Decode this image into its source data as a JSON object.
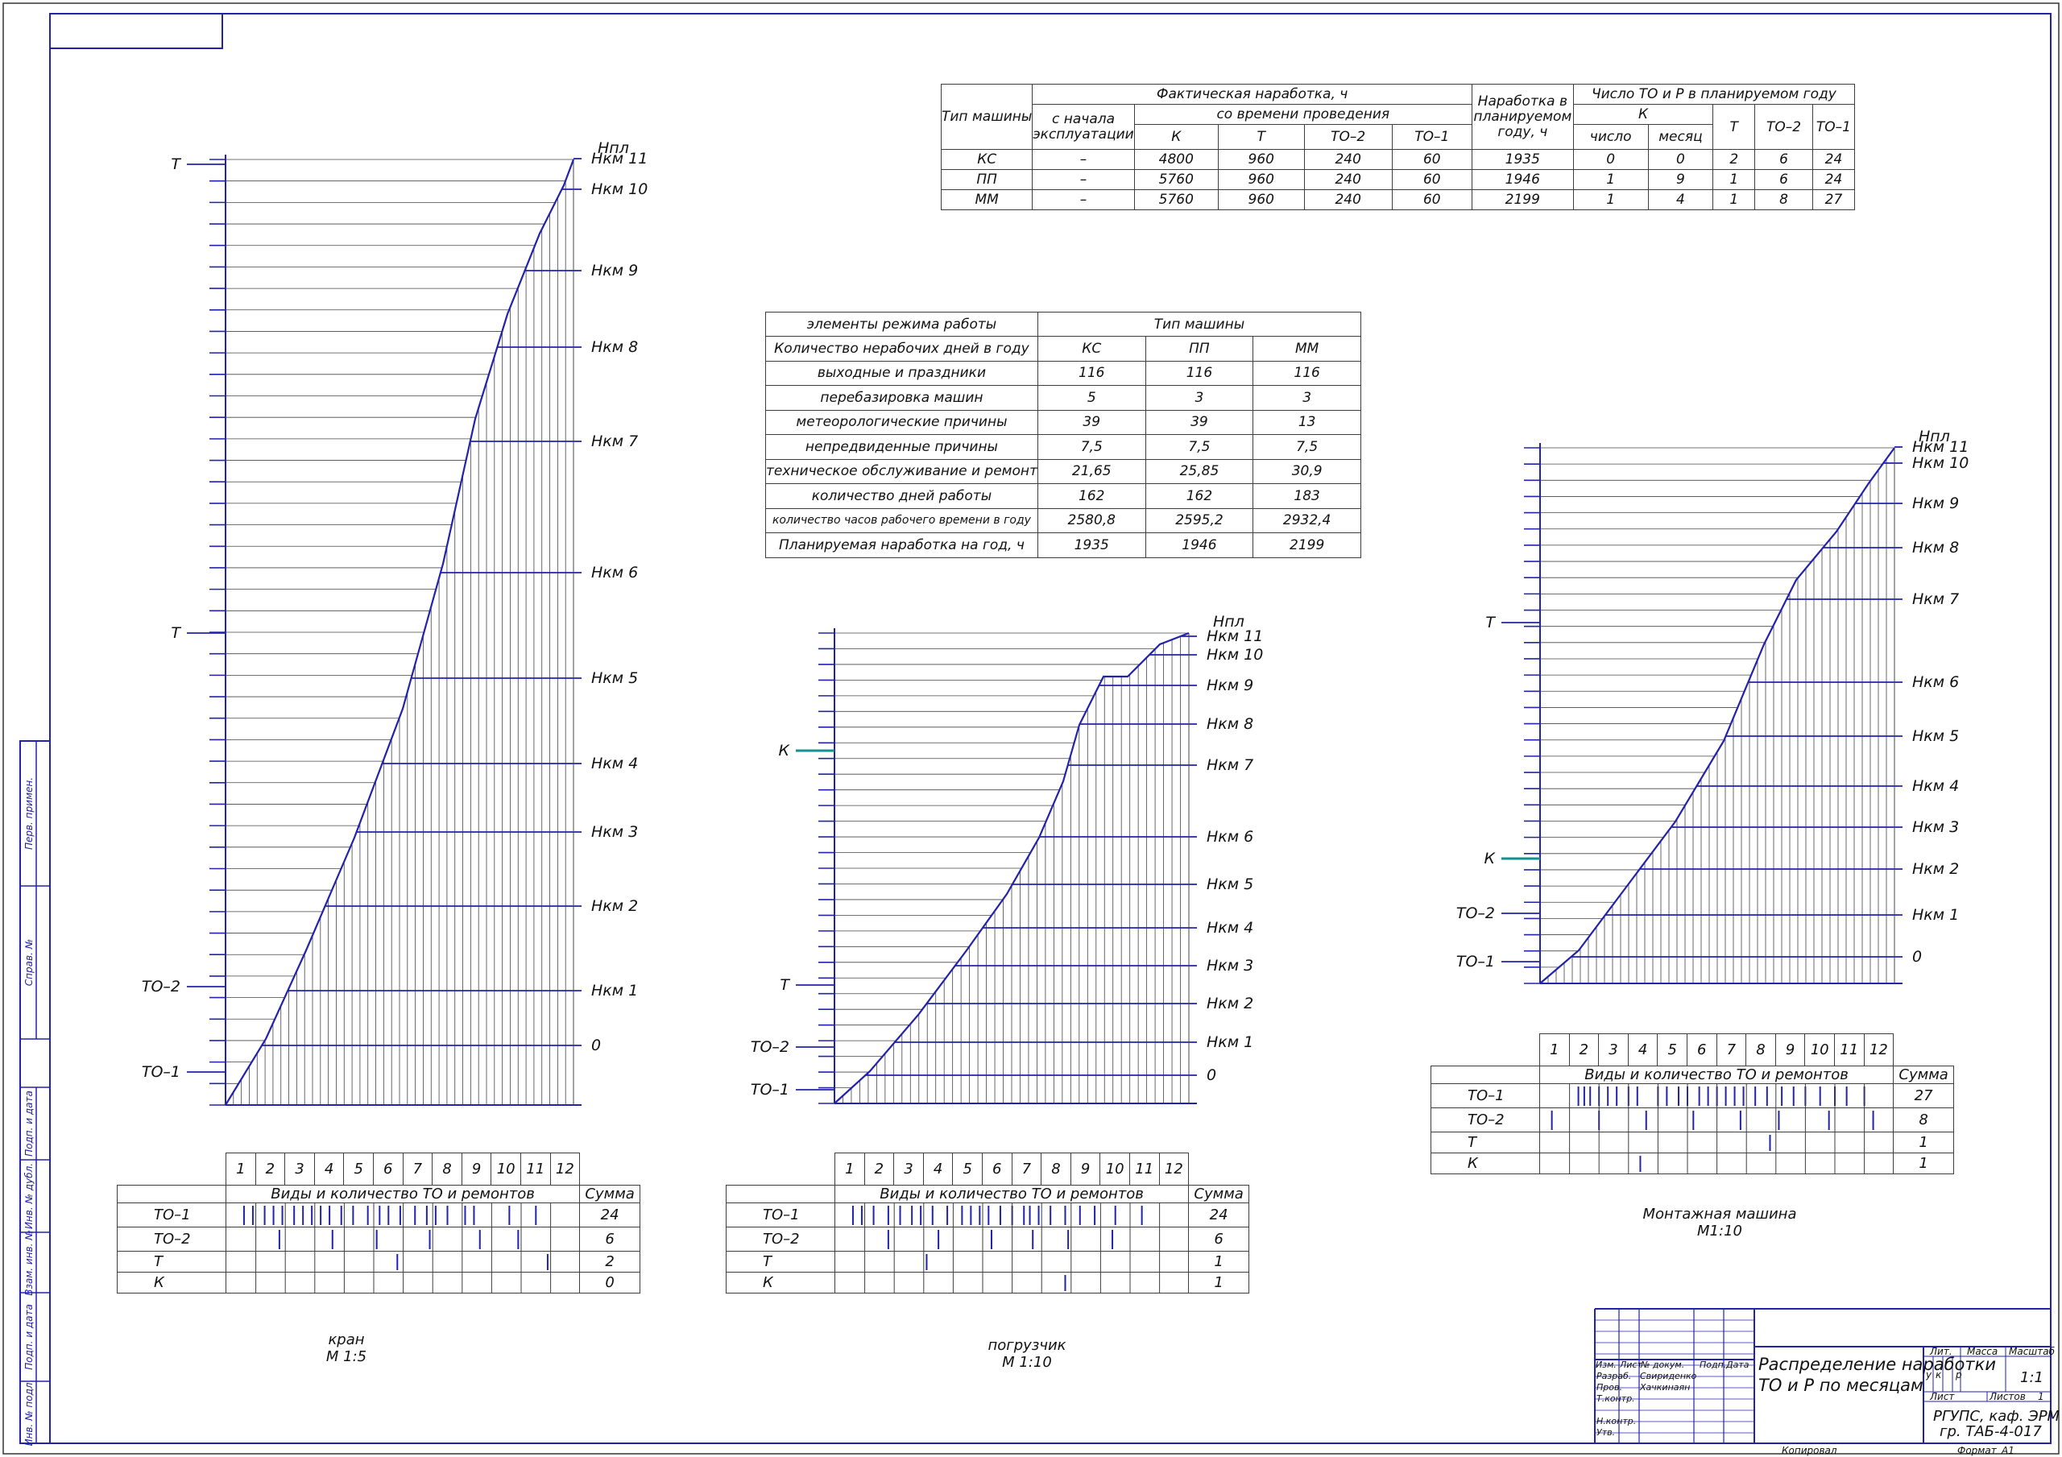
{
  "margin_labels": [
    "Перв. примен.",
    "Справ. №",
    "Подп. и дата",
    "Инв. № дубл.",
    "Взам. инв. №",
    "Подп. и дата",
    "Инв. № подл."
  ],
  "top_table": {
    "col_type": "Тип машины",
    "actual_hours": "Фактическая наработка, ч",
    "since_start": "с начала эксплуатации",
    "since_service": "со времени проведения",
    "planned_hours": "Наработка в планируемом году, ч",
    "count_header": "Число ТО и Р в планируемом году",
    "k_header": "К",
    "k_sub": [
      "число",
      "месяц"
    ],
    "service_cols": [
      "К",
      "Т",
      "ТО–2",
      "ТО–1"
    ],
    "plan_cols": [
      "Т",
      "ТО–2",
      "ТО–1"
    ],
    "rows": [
      [
        "КС",
        "–",
        "4800",
        "960",
        "240",
        "60",
        "1935",
        "0",
        "0",
        "2",
        "6",
        "24"
      ],
      [
        "ПП",
        "–",
        "5760",
        "960",
        "240",
        "60",
        "1946",
        "1",
        "9",
        "1",
        "6",
        "24"
      ],
      [
        "ММ",
        "–",
        "5760",
        "960",
        "240",
        "60",
        "2199",
        "1",
        "4",
        "1",
        "8",
        "27"
      ]
    ]
  },
  "mid_table": {
    "header": [
      "элементы режима работы",
      "Тип машины"
    ],
    "rows": [
      [
        "Количество нерабочих дней в году",
        "КС",
        "ПП",
        "ММ"
      ],
      [
        "выходные и праздники",
        "116",
        "116",
        "116"
      ],
      [
        "перебазировка машин",
        "5",
        "3",
        "3"
      ],
      [
        "метеорологические причины",
        "39",
        "39",
        "13"
      ],
      [
        "непредвиденные причины",
        "7,5",
        "7,5",
        "7,5"
      ],
      [
        "техническое обслуживание и ремонт",
        "21,65",
        "25,85",
        "30,9"
      ],
      [
        "количество дней работы",
        "162",
        "162",
        "183"
      ],
      [
        "количество часов рабочего времени в году",
        "2580,8",
        "2595,2",
        "2932,4"
      ],
      [
        "Планируемая наработка на год, ч",
        "1935",
        "1946",
        "2199"
      ]
    ]
  },
  "schedule_tables": [
    {
      "months": [
        "1",
        "2",
        "3",
        "4",
        "5",
        "6",
        "7",
        "8",
        "9",
        "10",
        "11",
        "12"
      ],
      "header": "Виды и количество ТО и ремонтов",
      "sum_label": "Сумма",
      "rows": [
        {
          "label": "ТО–1",
          "sum": "24"
        },
        {
          "label": "ТО–2",
          "sum": "6"
        },
        {
          "label": "Т",
          "sum": "2"
        },
        {
          "label": "К",
          "sum": "0"
        }
      ]
    },
    {
      "months": [
        "1",
        "2",
        "3",
        "4",
        "5",
        "6",
        "7",
        "8",
        "9",
        "10",
        "11",
        "12"
      ],
      "header": "Виды и количество ТО и ремонтов",
      "sum_label": "Сумма",
      "rows": [
        {
          "label": "ТО–1",
          "sum": "24"
        },
        {
          "label": "ТО–2",
          "sum": "6"
        },
        {
          "label": "Т",
          "sum": "1"
        },
        {
          "label": "К",
          "sum": "1"
        }
      ]
    },
    {
      "months": [
        "1",
        "2",
        "3",
        "4",
        "5",
        "6",
        "7",
        "8",
        "9",
        "10",
        "11",
        "12"
      ],
      "header": "Виды и количество ТО и ремонтов",
      "sum_label": "Сумма",
      "rows": [
        {
          "label": "ТО–1",
          "sum": "27"
        },
        {
          "label": "ТО–2",
          "sum": "8"
        },
        {
          "label": "Т",
          "sum": "1"
        },
        {
          "label": "К",
          "sum": "1"
        }
      ]
    }
  ],
  "chart_data": [
    {
      "type": "line",
      "name": "кран М 1:5",
      "right_labels": [
        "0",
        "Нкм 1",
        "Нкм 2",
        "Нкм 3",
        "Нкм 4",
        "Нкм 5",
        "Нкм 6",
        "Нкм 7",
        "Нкм 8",
        "Нкм 9",
        "Нкм 10",
        "Нкм 11",
        "Нпл"
      ],
      "left_labels": [
        "ТО–1",
        "ТО–2",
        "Т",
        "Т"
      ],
      "cumulative_fraction": [
        0,
        0.05,
        0.16,
        0.27,
        0.43,
        0.57,
        0.72,
        1,
        1.15,
        1.34,
        1.53,
        1.67,
        1.73
      ],
      "monthly_fraction": [
        0,
        0.05,
        0.1,
        0.15,
        0.22,
        0.3,
        0.37,
        0.42,
        0.5,
        0.57,
        0.68,
        0.82,
        1.0
      ]
    },
    {
      "type": "line",
      "name": "погрузчик М 1:10",
      "right_labels": [
        "0",
        "Нкм 1",
        "Нкм 2",
        "Нкм 3",
        "Нкм 4",
        "Нкм 5",
        "Нкм 6",
        "Нкм 7",
        "Нкм 8",
        "Нкм 9",
        "Нкм 10",
        "Нкм 11",
        "Нпл"
      ],
      "left_labels": [
        "ТО–1",
        "ТО–2",
        "Т",
        "К"
      ],
      "monthly_fraction": [
        0,
        0.04,
        0.12,
        0.2,
        0.28,
        0.38,
        0.48,
        0.6,
        0.75,
        0.84,
        0.9,
        0.96,
        1.0
      ]
    },
    {
      "type": "line",
      "name": "Монтажная машина М1:10",
      "right_labels": [
        "0",
        "Нкм 1",
        "Нкм 2",
        "Нкм 3",
        "Нкм 4",
        "Нкм 5",
        "Нкм 6",
        "Нкм 7",
        "Нкм 8",
        "Нкм 9",
        "Нкм 10",
        "Нкм 11",
        "Нпл"
      ],
      "left_labels": [
        "ТО–1",
        "ТО–2",
        "К",
        "Т"
      ],
      "monthly_fraction": [
        0,
        0.05,
        0.12,
        0.2,
        0.28,
        0.38,
        0.48,
        0.62,
        0.76,
        0.85,
        0.91,
        0.97,
        1.0
      ]
    }
  ],
  "captions": [
    {
      "line1": "кран",
      "line2": "М 1:5"
    },
    {
      "line1": "погрузчик",
      "line2": "М 1:10"
    },
    {
      "line1": "Монтажная машина",
      "line2": "М1:10"
    }
  ],
  "title_block": {
    "title_line1": "Распределение наработки",
    "title_line2": "ТО и Р по месяцам",
    "org_line1": "РГУПС, каф. ЭРМ",
    "org_line2": "гр. ТАБ-4-017",
    "lit": "Лит.",
    "mass": "Масса",
    "scale": "Масштаб",
    "scale_value": "1:1",
    "letters": [
      "у",
      "к",
      "р"
    ],
    "sheet": "Лист",
    "sheets": "Листов",
    "sheets_value": "1",
    "cols": [
      "Изм.",
      "Лист",
      "№ докум.",
      "Подп.",
      "Дата"
    ],
    "roles": [
      "Разраб.",
      "Пров.",
      "Т.контр.",
      "",
      "Н.контр.",
      "Утв."
    ],
    "names": [
      "Свириденко",
      "Хачкинаян"
    ],
    "copied": "Копировал",
    "format": "Формат",
    "format_value": "A1"
  }
}
